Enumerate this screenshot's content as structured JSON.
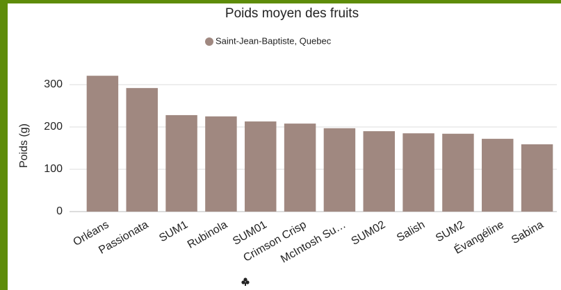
{
  "chart_data": {
    "type": "bar",
    "title": "Poids moyen des fruits",
    "y_label": "Poids (g)",
    "categories": [
      "Orléans",
      "Passionata",
      "SUM1",
      "Rubinola",
      "SUM01",
      "Crimson Crisp",
      "McIntosh Su…",
      "SUM02",
      "Salish",
      "SUM2",
      "Évangéline",
      "Sabina"
    ],
    "series": [
      {
        "name": "Saint-Jean-Baptiste, Quebec",
        "color": "#a08880",
        "values": [
          321,
          292,
          228,
          225,
          213,
          208,
          197,
          190,
          185,
          184,
          172,
          159
        ]
      }
    ],
    "ylim": [
      0,
      350
    ],
    "yticks": [
      0,
      100,
      200,
      300
    ],
    "grid": true
  }
}
